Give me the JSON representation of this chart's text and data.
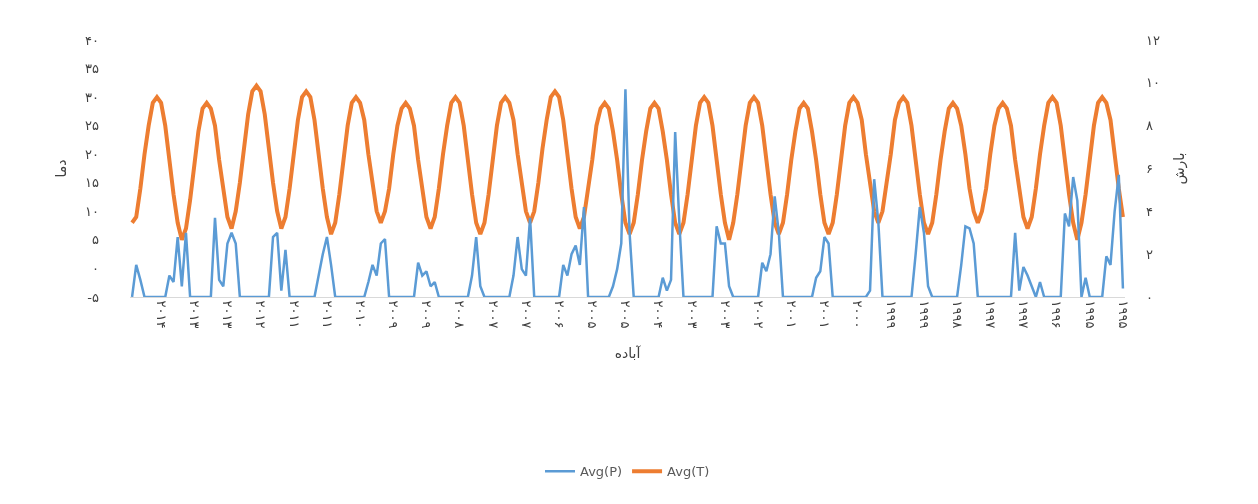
{
  "chart_data": {
    "type": "line",
    "xlabel": "آباده",
    "ylabel": "دما",
    "y2label": "بارش",
    "categories": [
      null,
      null,
      null,
      null,
      null,
      null,
      null,
      "۲۰۱۴",
      null,
      null,
      null,
      null,
      null,
      null,
      null,
      "۲۰۱۳",
      null,
      null,
      null,
      null,
      null,
      null,
      null,
      "۲۰۱۳",
      null,
      null,
      null,
      null,
      null,
      null,
      null,
      "۲۰۱۲",
      null,
      null,
      null,
      null,
      null,
      null,
      null,
      "۲۰۱۱",
      null,
      null,
      null,
      null,
      null,
      null,
      null,
      "۲۰۱۱",
      null,
      null,
      null,
      null,
      null,
      null,
      null,
      "۲۰۱۰",
      null,
      null,
      null,
      null,
      null,
      null,
      null,
      "۲۰۰۹",
      null,
      null,
      null,
      null,
      null,
      null,
      null,
      "۲۰۰۹",
      null,
      null,
      null,
      null,
      null,
      null,
      null,
      "۲۰۰۸",
      null,
      null,
      null,
      null,
      null,
      null,
      null,
      "۲۰۰۷",
      null,
      null,
      null,
      null,
      null,
      null,
      null,
      "۲۰۰۷",
      null,
      null,
      null,
      null,
      null,
      null,
      null,
      "۲۰۰۶",
      null,
      null,
      null,
      null,
      null,
      null,
      null,
      "۲۰۰۵",
      null,
      null,
      null,
      null,
      null,
      null,
      null,
      "۲۰۰۵",
      null,
      null,
      null,
      null,
      null,
      null,
      null,
      "۲۰۰۴",
      null,
      null,
      null,
      null,
      null,
      null,
      null,
      "۲۰۰۳",
      null,
      null,
      null,
      null,
      null,
      null,
      null,
      "۲۰۰۳",
      null,
      null,
      null,
      null,
      null,
      null,
      null,
      "۲۰۰۲",
      null,
      null,
      null,
      null,
      null,
      null,
      null,
      "۲۰۰۱",
      null,
      null,
      null,
      null,
      null,
      null,
      null,
      "۲۰۰۱",
      null,
      null,
      null,
      null,
      null,
      null,
      null,
      "۲۰۰۰",
      null,
      null,
      null,
      null,
      null,
      null,
      null,
      "۱۹۹۹",
      null,
      null,
      null,
      null,
      null,
      null,
      null,
      "۱۹۹۹",
      null,
      null,
      null,
      null,
      null,
      null,
      null,
      "۱۹۹۸",
      null,
      null,
      null,
      null,
      null,
      null,
      null,
      "۱۹۹۷",
      null,
      null,
      null,
      null,
      null,
      null,
      null,
      "۱۹۹۷",
      null,
      null,
      null,
      null,
      null,
      null,
      null,
      "۱۹۹۶",
      null,
      null,
      null,
      null,
      null,
      null,
      null,
      "۱۹۹۵",
      null,
      null,
      null,
      null,
      null,
      null,
      null,
      "۱۹۹۵"
    ],
    "series": [
      {
        "name": "Avg(P)",
        "color": "#5b9bd5",
        "axis": "y2",
        "values": [
          0,
          1.5,
          0.8,
          0,
          0,
          0,
          0,
          0,
          0,
          1,
          0.7,
          2.8,
          0.5,
          3.0,
          0,
          0,
          0,
          0,
          0,
          0,
          3.7,
          0.8,
          0.5,
          2.5,
          3.0,
          2.5,
          0,
          0,
          0,
          0,
          0,
          0,
          0,
          0,
          2.8,
          3.0,
          0.3,
          2.2,
          0,
          0,
          0,
          0,
          0,
          0,
          0,
          1.0,
          2.0,
          2.8,
          1.5,
          0,
          0,
          0,
          0,
          0,
          0,
          0,
          0,
          0.7,
          1.5,
          1.0,
          2.5,
          2.7,
          0,
          0,
          0,
          0,
          0,
          0,
          0,
          1.6,
          1.0,
          1.2,
          0.5,
          0.7,
          0,
          0,
          0,
          0,
          0,
          0,
          0,
          0,
          1.0,
          2.8,
          0.5,
          0,
          0,
          0,
          0,
          0,
          0,
          0,
          1.0,
          2.8,
          1.3,
          1.0,
          3.7,
          0,
          0,
          0,
          0,
          0,
          0,
          0,
          1.5,
          1.0,
          2.0,
          2.4,
          1.5,
          4.2,
          0,
          0,
          0,
          0,
          0,
          0,
          0.5,
          1.3,
          2.5,
          9.7,
          3.0,
          0,
          0,
          0,
          0,
          0,
          0,
          0,
          0.9,
          0.3,
          0.8,
          7.7,
          3.5,
          0,
          0,
          0,
          0,
          0,
          0,
          0,
          0,
          3.3,
          2.5,
          2.5,
          0.5,
          0,
          0,
          0,
          0,
          0,
          0,
          0,
          1.6,
          1.2,
          2.0,
          4.7,
          3.0,
          0,
          0,
          0,
          0,
          0,
          0,
          0,
          0,
          0.9,
          1.2,
          2.8,
          2.5,
          0,
          0,
          0,
          0,
          0,
          0,
          0,
          0,
          0,
          0.3,
          5.5,
          3.5,
          0,
          0,
          0,
          0,
          0,
          0,
          0,
          0,
          2.0,
          4.2,
          3.0,
          0.5,
          0,
          0,
          0,
          0,
          0,
          0,
          0,
          1.5,
          3.3,
          3.2,
          2.5,
          0,
          0,
          0,
          0,
          0,
          0,
          0,
          0,
          0,
          3.0,
          0.3,
          1.4,
          1.0,
          0.5,
          0,
          0.7,
          0,
          0,
          0,
          0,
          0,
          3.9,
          3.3,
          5.6,
          4.5,
          0,
          0.9,
          0,
          0,
          0,
          0,
          1.9,
          1.5,
          4.0,
          5.7,
          0.4
        ]
      },
      {
        "name": "Avg(T)",
        "color": "#ed7d31",
        "values": [
          8,
          9,
          14,
          20,
          25,
          29,
          30,
          29,
          25,
          19,
          13,
          8,
          5,
          7,
          12,
          18,
          24,
          28,
          29,
          28,
          25,
          19,
          14,
          9,
          7,
          10,
          15,
          21,
          27,
          31,
          32,
          31,
          27,
          21,
          15,
          10,
          7,
          9,
          14,
          20,
          26,
          30,
          31,
          30,
          26,
          20,
          14,
          9,
          6,
          8,
          13,
          19,
          25,
          29,
          30,
          29,
          26,
          20,
          15,
          10,
          8,
          10,
          14,
          20,
          25,
          28,
          29,
          28,
          25,
          19,
          14,
          9,
          7,
          9,
          14,
          20,
          25,
          29,
          30,
          29,
          25,
          19,
          13,
          8,
          6,
          8,
          13,
          19,
          25,
          29,
          30,
          29,
          26,
          20,
          15,
          10,
          8,
          10,
          15,
          21,
          26,
          30,
          31,
          30,
          26,
          20,
          14,
          9,
          7,
          9,
          14,
          19,
          25,
          28,
          29,
          28,
          24,
          19,
          13,
          8,
          6,
          8,
          13,
          19,
          24,
          28,
          29,
          28,
          24,
          19,
          13,
          8,
          6,
          8,
          13,
          19,
          25,
          29,
          30,
          29,
          25,
          19,
          13,
          8,
          5,
          8,
          13,
          19,
          25,
          29,
          30,
          29,
          25,
          19,
          13,
          8,
          6,
          8,
          13,
          19,
          24,
          28,
          29,
          28,
          24,
          19,
          13,
          8,
          6,
          8,
          13,
          19,
          25,
          29,
          30,
          29,
          26,
          20,
          15,
          10,
          8,
          10,
          15,
          20,
          26,
          29,
          30,
          29,
          25,
          19,
          13,
          8,
          6,
          8,
          13,
          19,
          24,
          28,
          29,
          28,
          25,
          20,
          14,
          10,
          8,
          10,
          14,
          20,
          25,
          28,
          29,
          28,
          25,
          19,
          14,
          9,
          7,
          9,
          14,
          20,
          25,
          29,
          30,
          29,
          25,
          19,
          13,
          8,
          5,
          8,
          13,
          19,
          25,
          29,
          30,
          29,
          26,
          20,
          14,
          9
        ]
      }
    ],
    "ylim": [
      -5,
      40
    ],
    "yticks": [
      {
        "value": -5,
        "label": "-۵"
      },
      {
        "value": 0,
        "label": "۰"
      },
      {
        "value": 5,
        "label": "۵"
      },
      {
        "value": 10,
        "label": "۱۰"
      },
      {
        "value": 15,
        "label": "۱۵"
      },
      {
        "value": 20,
        "label": "۲۰"
      },
      {
        "value": 25,
        "label": "۲۵"
      },
      {
        "value": 30,
        "label": "۳۰"
      },
      {
        "value": 35,
        "label": "۳۵"
      },
      {
        "value": 40,
        "label": "۴۰"
      }
    ],
    "y2lim": [
      0,
      12
    ],
    "y2ticks": [
      {
        "value": 0,
        "label": "۰"
      },
      {
        "value": 2,
        "label": "۲"
      },
      {
        "value": 4,
        "label": "۴"
      },
      {
        "value": 6,
        "label": "۶"
      },
      {
        "value": 8,
        "label": "۸"
      },
      {
        "value": 10,
        "label": "۱۰"
      },
      {
        "value": 12,
        "label": "۱۲"
      }
    ],
    "legend": "bottom",
    "marker": "none",
    "line_style": "solid"
  }
}
